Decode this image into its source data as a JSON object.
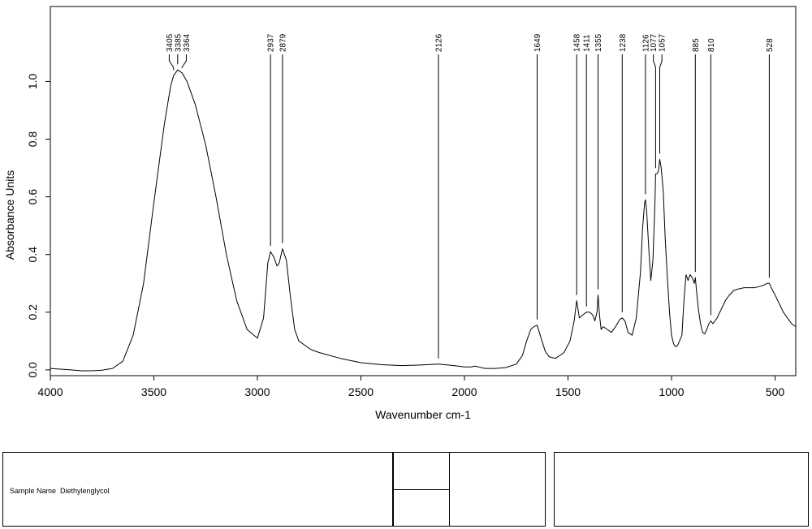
{
  "chart_data": {
    "type": "line",
    "xlabel": "Wavenumber cm-1",
    "ylabel": "Absorbance Units",
    "xlim": [
      4000,
      400
    ],
    "ylim": [
      -0.02,
      1.26
    ],
    "x_ticks": [
      4000,
      3500,
      3000,
      2500,
      2000,
      1500,
      1000,
      500
    ],
    "y_ticks": [
      0.0,
      0.2,
      0.4,
      0.6,
      0.8,
      1.0
    ],
    "grid": false,
    "series": [
      {
        "x": [
          4000,
          3900,
          3850,
          3800,
          3750,
          3700,
          3650,
          3600,
          3550,
          3500,
          3450,
          3420,
          3405,
          3385,
          3364,
          3340,
          3300,
          3250,
          3200,
          3150,
          3100,
          3050,
          3000,
          2970,
          2950,
          2937,
          2920,
          2905,
          2895,
          2879,
          2860,
          2840,
          2820,
          2800,
          2760,
          2740,
          2700,
          2600,
          2500,
          2400,
          2300,
          2200,
          2126,
          2050,
          2000,
          1970,
          1950,
          1930,
          1900,
          1850,
          1800,
          1750,
          1720,
          1700,
          1680,
          1665,
          1649,
          1630,
          1610,
          1590,
          1560,
          1520,
          1490,
          1470,
          1458,
          1445,
          1430,
          1411,
          1395,
          1380,
          1370,
          1360,
          1355,
          1348,
          1340,
          1330,
          1310,
          1290,
          1270,
          1250,
          1238,
          1225,
          1210,
          1190,
          1170,
          1150,
          1140,
          1130,
          1126,
          1120,
          1110,
          1100,
          1090,
          1080,
          1077,
          1070,
          1063,
          1057,
          1050,
          1040,
          1030,
          1020,
          1010,
          1000,
          990,
          980,
          970,
          950,
          940,
          930,
          920,
          910,
          900,
          890,
          885,
          880,
          870,
          860,
          850,
          840,
          830,
          820,
          810,
          800,
          780,
          760,
          740,
          720,
          700,
          680,
          650,
          620,
          600,
          570,
          550,
          540,
          528,
          515,
          500,
          480,
          460,
          440,
          420,
          400
        ],
        "y": [
          0.005,
          0.0,
          -0.003,
          -0.003,
          -0.001,
          0.005,
          0.03,
          0.12,
          0.3,
          0.58,
          0.85,
          0.98,
          1.02,
          1.04,
          1.03,
          1.0,
          0.92,
          0.78,
          0.6,
          0.4,
          0.24,
          0.14,
          0.11,
          0.18,
          0.37,
          0.41,
          0.39,
          0.36,
          0.37,
          0.42,
          0.38,
          0.25,
          0.14,
          0.1,
          0.08,
          0.07,
          0.06,
          0.04,
          0.025,
          0.018,
          0.015,
          0.017,
          0.02,
          0.015,
          0.01,
          0.01,
          0.013,
          0.01,
          0.005,
          0.005,
          0.008,
          0.02,
          0.05,
          0.1,
          0.14,
          0.15,
          0.155,
          0.11,
          0.065,
          0.045,
          0.04,
          0.06,
          0.1,
          0.17,
          0.24,
          0.18,
          0.19,
          0.2,
          0.2,
          0.19,
          0.17,
          0.2,
          0.26,
          0.19,
          0.14,
          0.15,
          0.14,
          0.13,
          0.15,
          0.175,
          0.18,
          0.17,
          0.13,
          0.12,
          0.18,
          0.34,
          0.49,
          0.58,
          0.59,
          0.55,
          0.42,
          0.31,
          0.38,
          0.58,
          0.68,
          0.68,
          0.69,
          0.73,
          0.7,
          0.62,
          0.45,
          0.32,
          0.2,
          0.12,
          0.09,
          0.08,
          0.085,
          0.12,
          0.24,
          0.33,
          0.31,
          0.33,
          0.32,
          0.3,
          0.32,
          0.28,
          0.21,
          0.16,
          0.13,
          0.125,
          0.14,
          0.16,
          0.17,
          0.16,
          0.18,
          0.21,
          0.24,
          0.26,
          0.275,
          0.28,
          0.285,
          0.285,
          0.285,
          0.29,
          0.295,
          0.3,
          0.3,
          0.28,
          0.26,
          0.23,
          0.2,
          0.18,
          0.16,
          0.15
        ]
      }
    ],
    "peak_labels": [
      "3405",
      "3385",
      "3364",
      "2937",
      "2879",
      "2126",
      "1649",
      "1458",
      "1411",
      "1355",
      "1238",
      "1126",
      "1077",
      "1057",
      "885",
      "810",
      "528"
    ]
  },
  "info_panel": {
    "sample_label": "Sample Name",
    "sample_value": "Diethylenglycol"
  }
}
